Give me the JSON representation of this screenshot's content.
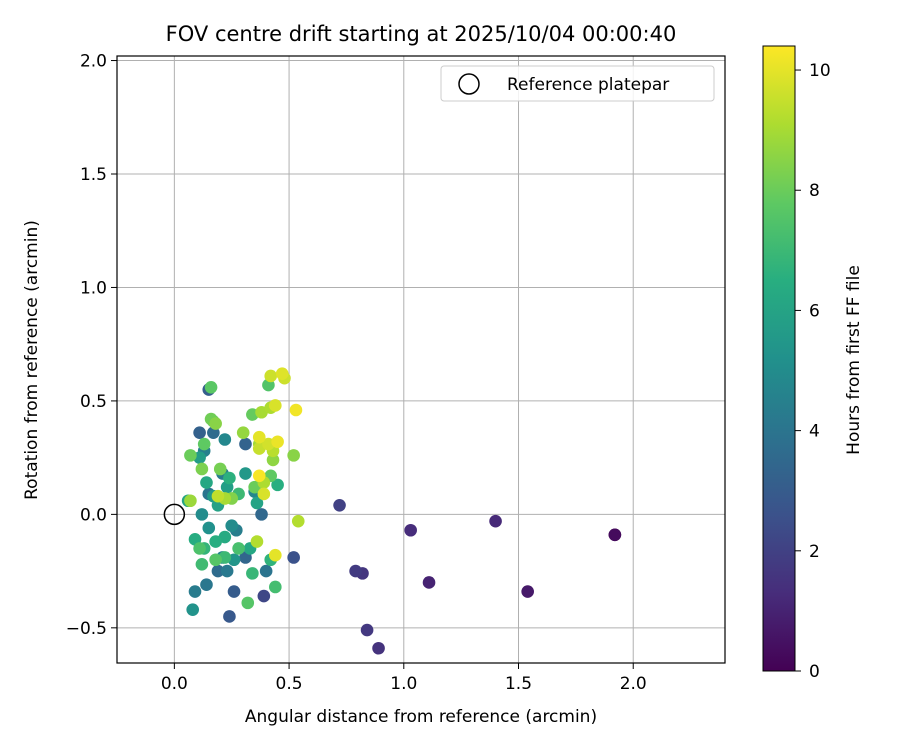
{
  "chart_data": {
    "type": "scatter",
    "title": "FOV centre drift starting at 2025/10/04 00:00:40",
    "xlabel": "Angular distance from reference (arcmin)",
    "ylabel": "Rotation from reference (arcmin)",
    "xlim": [
      -0.25,
      2.4
    ],
    "ylim": [
      -0.655,
      2.02
    ],
    "xticks": [
      0.0,
      0.5,
      1.0,
      1.5,
      2.0
    ],
    "xtick_labels": [
      "0.0",
      "0.5",
      "1.0",
      "1.5",
      "2.0"
    ],
    "yticks": [
      -0.5,
      0.0,
      0.5,
      1.0,
      1.5,
      2.0
    ],
    "ytick_labels": [
      "−0.5",
      "0.0",
      "0.5",
      "1.0",
      "1.5",
      "2.0"
    ],
    "grid": true,
    "legend": {
      "position": "top-right",
      "label": "Reference platepar",
      "marker": "open-circle"
    },
    "reference_point": {
      "x": 0.0,
      "y": 0.0
    },
    "colorbar": {
      "label": "Hours from first FF file",
      "colormap": "viridis",
      "range": [
        0,
        10.4
      ],
      "ticks": [
        0,
        2,
        4,
        6,
        8,
        10
      ],
      "tick_labels": [
        "0",
        "2",
        "4",
        "6",
        "8",
        "10"
      ]
    },
    "series": [
      {
        "name": "FOV centre",
        "points": [
          {
            "x": 1.92,
            "y": -0.09,
            "c": 0.0
          },
          {
            "x": 1.92,
            "y": -0.09,
            "c": 0.3
          },
          {
            "x": 1.54,
            "y": -0.34,
            "c": 0.7
          },
          {
            "x": 1.11,
            "y": -0.3,
            "c": 1.0
          },
          {
            "x": 1.4,
            "y": -0.03,
            "c": 1.2
          },
          {
            "x": 1.03,
            "y": -0.07,
            "c": 1.3
          },
          {
            "x": 0.89,
            "y": -0.59,
            "c": 1.5
          },
          {
            "x": 0.84,
            "y": -0.51,
            "c": 1.7
          },
          {
            "x": 0.82,
            "y": -0.26,
            "c": 1.6
          },
          {
            "x": 0.79,
            "y": -0.25,
            "c": 1.8
          },
          {
            "x": 0.72,
            "y": 0.04,
            "c": 2.0
          },
          {
            "x": 0.39,
            "y": -0.36,
            "c": 2.2
          },
          {
            "x": 0.52,
            "y": -0.19,
            "c": 2.6
          },
          {
            "x": 0.24,
            "y": -0.45,
            "c": 2.9
          },
          {
            "x": 0.26,
            "y": -0.34,
            "c": 3.0
          },
          {
            "x": 0.15,
            "y": 0.55,
            "c": 3.1
          },
          {
            "x": 0.31,
            "y": 0.31,
            "c": 3.3
          },
          {
            "x": 0.11,
            "y": 0.36,
            "c": 3.2
          },
          {
            "x": 0.38,
            "y": 0.0,
            "c": 3.5
          },
          {
            "x": 0.17,
            "y": 0.36,
            "c": 3.6
          },
          {
            "x": 0.31,
            "y": -0.19,
            "c": 3.4
          },
          {
            "x": 0.19,
            "y": -0.25,
            "c": 3.6
          },
          {
            "x": 0.4,
            "y": -0.25,
            "c": 4.0
          },
          {
            "x": 0.14,
            "y": -0.31,
            "c": 4.1
          },
          {
            "x": 0.09,
            "y": -0.34,
            "c": 4.3
          },
          {
            "x": 0.27,
            "y": -0.07,
            "c": 4.4
          },
          {
            "x": 0.13,
            "y": 0.28,
            "c": 4.5
          },
          {
            "x": 0.21,
            "y": 0.18,
            "c": 4.4
          },
          {
            "x": 0.23,
            "y": -0.25,
            "c": 4.2
          },
          {
            "x": 0.21,
            "y": -0.19,
            "c": 4.6
          },
          {
            "x": 0.15,
            "y": 0.09,
            "c": 4.0
          },
          {
            "x": 0.35,
            "y": 0.1,
            "c": 4.8
          },
          {
            "x": 0.12,
            "y": 0.0,
            "c": 5.0
          },
          {
            "x": 0.22,
            "y": 0.33,
            "c": 4.8
          },
          {
            "x": 0.25,
            "y": -0.05,
            "c": 5.0
          },
          {
            "x": 0.08,
            "y": -0.42,
            "c": 5.3
          },
          {
            "x": 0.15,
            "y": -0.06,
            "c": 5.2
          },
          {
            "x": 0.26,
            "y": -0.2,
            "c": 5.4
          },
          {
            "x": 0.31,
            "y": 0.18,
            "c": 5.5
          },
          {
            "x": 0.17,
            "y": 0.08,
            "c": 5.6
          },
          {
            "x": 0.11,
            "y": 0.25,
            "c": 5.7
          },
          {
            "x": 0.23,
            "y": 0.12,
            "c": 5.8
          },
          {
            "x": 0.19,
            "y": 0.04,
            "c": 5.9
          },
          {
            "x": 0.36,
            "y": 0.05,
            "c": 6.0
          },
          {
            "x": 0.06,
            "y": 0.06,
            "c": 6.1
          },
          {
            "x": 0.14,
            "y": 0.14,
            "c": 6.2
          },
          {
            "x": 0.22,
            "y": -0.1,
            "c": 6.3
          },
          {
            "x": 0.33,
            "y": -0.15,
            "c": 6.2
          },
          {
            "x": 0.09,
            "y": -0.11,
            "c": 6.4
          },
          {
            "x": 0.18,
            "y": -0.12,
            "c": 6.5
          },
          {
            "x": 0.24,
            "y": 0.16,
            "c": 6.6
          },
          {
            "x": 0.45,
            "y": 0.13,
            "c": 6.5
          },
          {
            "x": 0.42,
            "y": -0.2,
            "c": 6.7
          },
          {
            "x": 0.13,
            "y": -0.15,
            "c": 6.8
          },
          {
            "x": 0.34,
            "y": -0.26,
            "c": 6.9
          },
          {
            "x": 0.28,
            "y": 0.09,
            "c": 7.0
          },
          {
            "x": 0.22,
            "y": -0.19,
            "c": 7.0
          },
          {
            "x": 0.12,
            "y": -0.22,
            "c": 7.1
          },
          {
            "x": 0.44,
            "y": -0.32,
            "c": 7.2
          },
          {
            "x": 0.28,
            "y": -0.15,
            "c": 7.3
          },
          {
            "x": 0.11,
            "y": -0.15,
            "c": 7.4
          },
          {
            "x": 0.18,
            "y": -0.2,
            "c": 7.6
          },
          {
            "x": 0.32,
            "y": -0.39,
            "c": 7.6
          },
          {
            "x": 0.41,
            "y": 0.57,
            "c": 7.5
          },
          {
            "x": 0.16,
            "y": 0.56,
            "c": 7.7
          },
          {
            "x": 0.13,
            "y": 0.31,
            "c": 7.8
          },
          {
            "x": 0.17,
            "y": 0.41,
            "c": 7.9
          },
          {
            "x": 0.42,
            "y": 0.17,
            "c": 7.8
          },
          {
            "x": 0.34,
            "y": 0.44,
            "c": 7.9
          },
          {
            "x": 0.07,
            "y": 0.26,
            "c": 8.0
          },
          {
            "x": 0.16,
            "y": 0.42,
            "c": 8.1
          },
          {
            "x": 0.2,
            "y": 0.2,
            "c": 8.2
          },
          {
            "x": 0.35,
            "y": 0.12,
            "c": 8.0
          },
          {
            "x": 0.12,
            "y": 0.2,
            "c": 8.3
          },
          {
            "x": 0.25,
            "y": 0.07,
            "c": 8.4
          },
          {
            "x": 0.52,
            "y": 0.26,
            "c": 8.5
          },
          {
            "x": 0.18,
            "y": 0.4,
            "c": 8.5
          },
          {
            "x": 0.3,
            "y": 0.36,
            "c": 8.7
          },
          {
            "x": 0.43,
            "y": 0.24,
            "c": 8.6
          },
          {
            "x": 0.07,
            "y": 0.06,
            "c": 8.8
          },
          {
            "x": 0.37,
            "y": 0.31,
            "c": 8.9
          },
          {
            "x": 0.38,
            "y": 0.45,
            "c": 9.0
          },
          {
            "x": 0.22,
            "y": 0.07,
            "c": 9.0
          },
          {
            "x": 0.42,
            "y": 0.47,
            "c": 9.1
          },
          {
            "x": 0.39,
            "y": 0.14,
            "c": 9.1
          },
          {
            "x": 0.54,
            "y": -0.03,
            "c": 9.2
          },
          {
            "x": 0.36,
            "y": -0.12,
            "c": 9.2
          },
          {
            "x": 0.43,
            "y": 0.28,
            "c": 9.3
          },
          {
            "x": 0.19,
            "y": 0.08,
            "c": 9.4
          },
          {
            "x": 0.37,
            "y": 0.29,
            "c": 9.5
          },
          {
            "x": 0.42,
            "y": 0.61,
            "c": 9.6
          },
          {
            "x": 0.48,
            "y": 0.6,
            "c": 9.6
          },
          {
            "x": 0.41,
            "y": 0.31,
            "c": 9.7
          },
          {
            "x": 0.44,
            "y": 0.48,
            "c": 9.8
          },
          {
            "x": 0.39,
            "y": 0.09,
            "c": 9.8
          },
          {
            "x": 0.47,
            "y": 0.62,
            "c": 9.9
          },
          {
            "x": 0.37,
            "y": 0.34,
            "c": 10.0
          },
          {
            "x": 0.44,
            "y": -0.18,
            "c": 10.0
          },
          {
            "x": 0.45,
            "y": 0.32,
            "c": 10.1
          },
          {
            "x": 0.53,
            "y": 0.46,
            "c": 10.2
          },
          {
            "x": 0.37,
            "y": 0.17,
            "c": 10.3
          }
        ]
      }
    ]
  }
}
